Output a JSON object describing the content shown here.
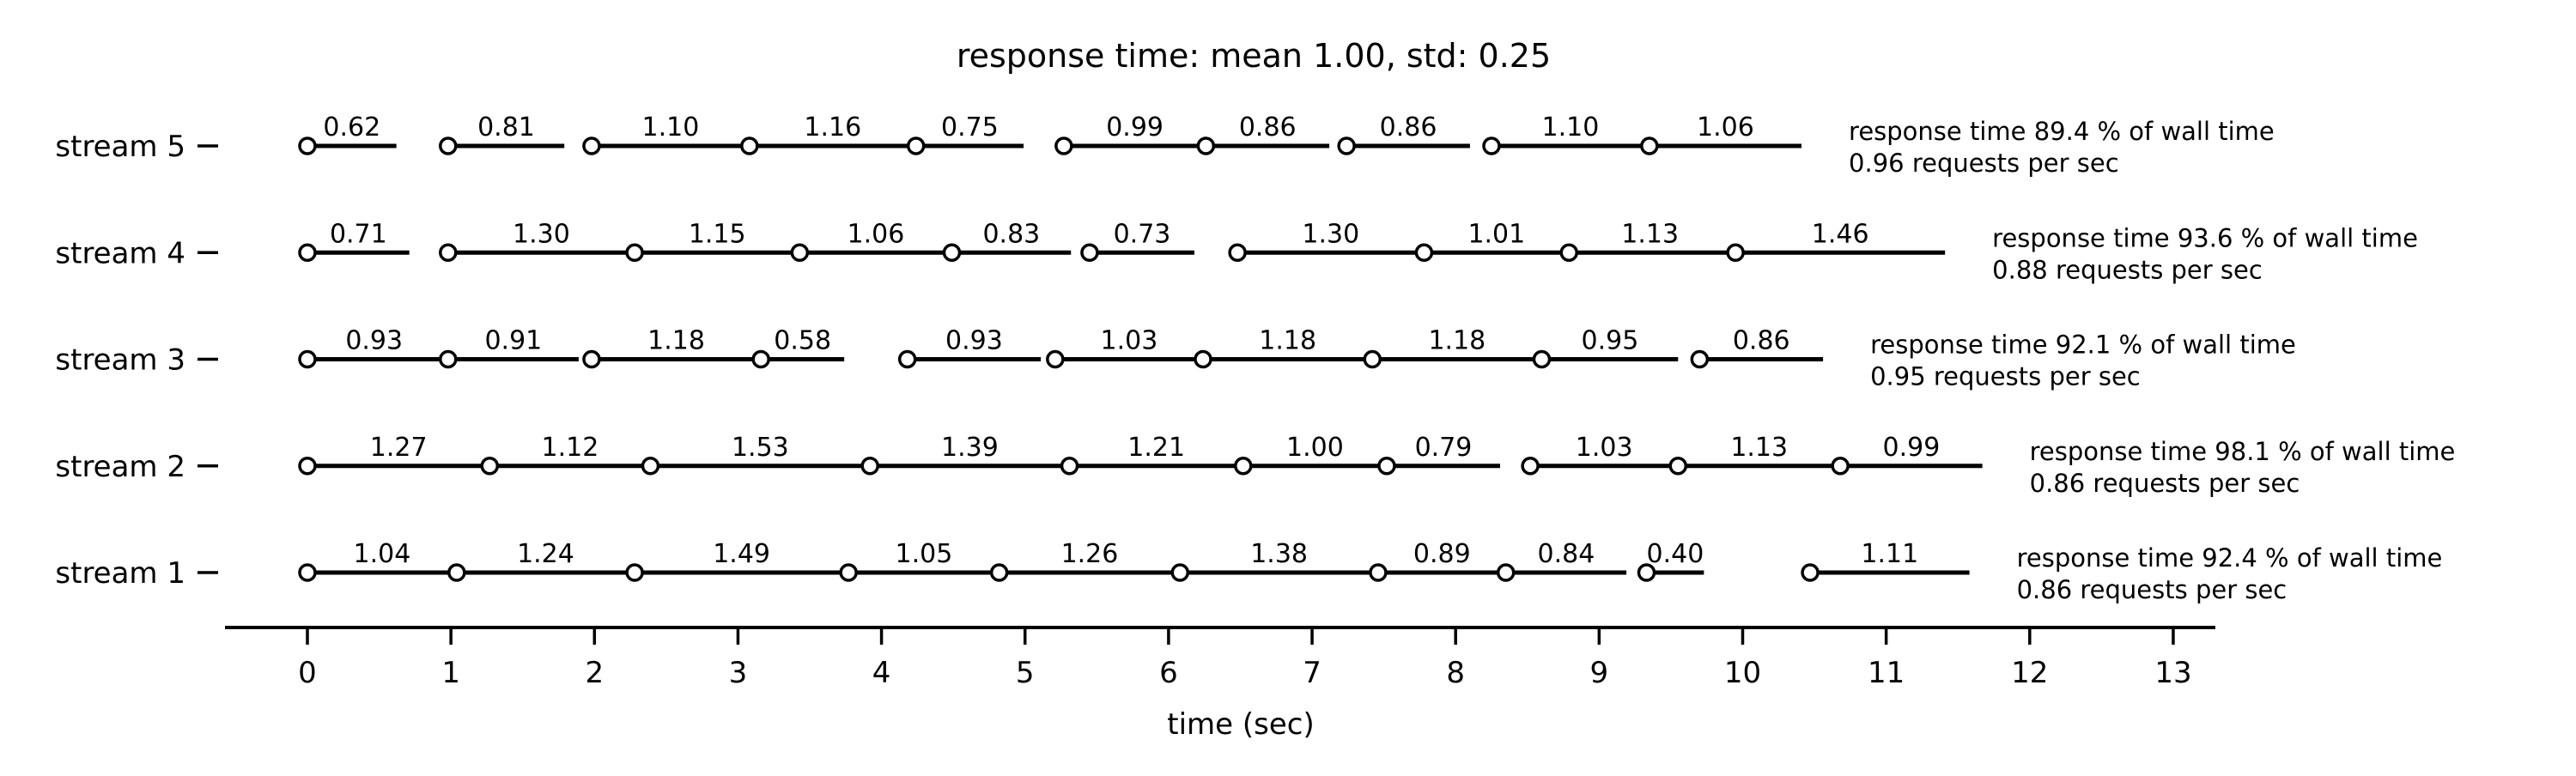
{
  "chart_data": {
    "type": "bar",
    "subtype": "request-timeline (broken horizontal bars, one row per stream)",
    "title": "response time: mean 1.00, std: 0.25",
    "xlabel": "time (sec)",
    "xlim": [
      0,
      13
    ],
    "xticks": [
      0,
      1,
      2,
      3,
      4,
      5,
      6,
      7,
      8,
      9,
      10,
      11,
      12,
      13
    ],
    "grid": false,
    "colors": {
      "foreground": "#000000",
      "background": "#ffffff",
      "marker_fill": "#ffffff"
    },
    "row_order_top_to_bottom": [
      "stream 5",
      "stream 4",
      "stream 3",
      "stream 2",
      "stream 1"
    ],
    "streams": [
      {
        "label": "stream 5",
        "annotation_line1": "response time 89.4 % of wall time",
        "annotation_line2": "0.96 requests per sec",
        "requests": [
          {
            "start": 0.0,
            "duration": 0.62
          },
          {
            "start": 0.98,
            "duration": 0.81
          },
          {
            "start": 1.98,
            "duration": 1.1
          },
          {
            "start": 3.08,
            "duration": 1.16
          },
          {
            "start": 4.24,
            "duration": 0.75
          },
          {
            "start": 5.27,
            "duration": 0.99
          },
          {
            "start": 6.26,
            "duration": 0.86
          },
          {
            "start": 7.24,
            "duration": 0.86
          },
          {
            "start": 8.25,
            "duration": 1.1
          },
          {
            "start": 9.35,
            "duration": 1.06
          }
        ]
      },
      {
        "label": "stream 4",
        "annotation_line1": "response time 93.6 % of wall time",
        "annotation_line2": "0.88 requests per sec",
        "requests": [
          {
            "start": 0.0,
            "duration": 0.71
          },
          {
            "start": 0.98,
            "duration": 1.3
          },
          {
            "start": 2.28,
            "duration": 1.15
          },
          {
            "start": 3.43,
            "duration": 1.06
          },
          {
            "start": 4.49,
            "duration": 0.83
          },
          {
            "start": 5.45,
            "duration": 0.73
          },
          {
            "start": 6.48,
            "duration": 1.3
          },
          {
            "start": 7.78,
            "duration": 1.01
          },
          {
            "start": 8.79,
            "duration": 1.13
          },
          {
            "start": 9.95,
            "duration": 1.46
          }
        ]
      },
      {
        "label": "stream 3",
        "annotation_line1": "response time 92.1 % of wall time",
        "annotation_line2": "0.95 requests per sec",
        "requests": [
          {
            "start": 0.0,
            "duration": 0.93
          },
          {
            "start": 0.98,
            "duration": 0.91
          },
          {
            "start": 1.98,
            "duration": 1.18
          },
          {
            "start": 3.16,
            "duration": 0.58
          },
          {
            "start": 4.18,
            "duration": 0.93
          },
          {
            "start": 5.21,
            "duration": 1.03
          },
          {
            "start": 6.24,
            "duration": 1.18
          },
          {
            "start": 7.42,
            "duration": 1.18
          },
          {
            "start": 8.6,
            "duration": 0.95
          },
          {
            "start": 9.7,
            "duration": 0.86
          }
        ]
      },
      {
        "label": "stream 2",
        "annotation_line1": "response time 98.1 % of wall time",
        "annotation_line2": "0.86 requests per sec",
        "requests": [
          {
            "start": 0.0,
            "duration": 1.27
          },
          {
            "start": 1.27,
            "duration": 1.12
          },
          {
            "start": 2.39,
            "duration": 1.53
          },
          {
            "start": 3.92,
            "duration": 1.39
          },
          {
            "start": 5.31,
            "duration": 1.21
          },
          {
            "start": 6.52,
            "duration": 1.0
          },
          {
            "start": 7.52,
            "duration": 0.79
          },
          {
            "start": 8.52,
            "duration": 1.03
          },
          {
            "start": 9.55,
            "duration": 1.13
          },
          {
            "start": 10.68,
            "duration": 0.99
          }
        ]
      },
      {
        "label": "stream 1",
        "annotation_line1": "response time 92.4 % of wall time",
        "annotation_line2": "0.86 requests per sec",
        "requests": [
          {
            "start": 0.0,
            "duration": 1.04
          },
          {
            "start": 1.04,
            "duration": 1.24
          },
          {
            "start": 2.28,
            "duration": 1.49
          },
          {
            "start": 3.77,
            "duration": 1.05
          },
          {
            "start": 4.82,
            "duration": 1.26
          },
          {
            "start": 6.08,
            "duration": 1.38
          },
          {
            "start": 7.46,
            "duration": 0.89
          },
          {
            "start": 8.35,
            "duration": 0.84
          },
          {
            "start": 9.33,
            "duration": 0.4
          },
          {
            "start": 10.47,
            "duration": 1.11
          }
        ]
      }
    ]
  }
}
